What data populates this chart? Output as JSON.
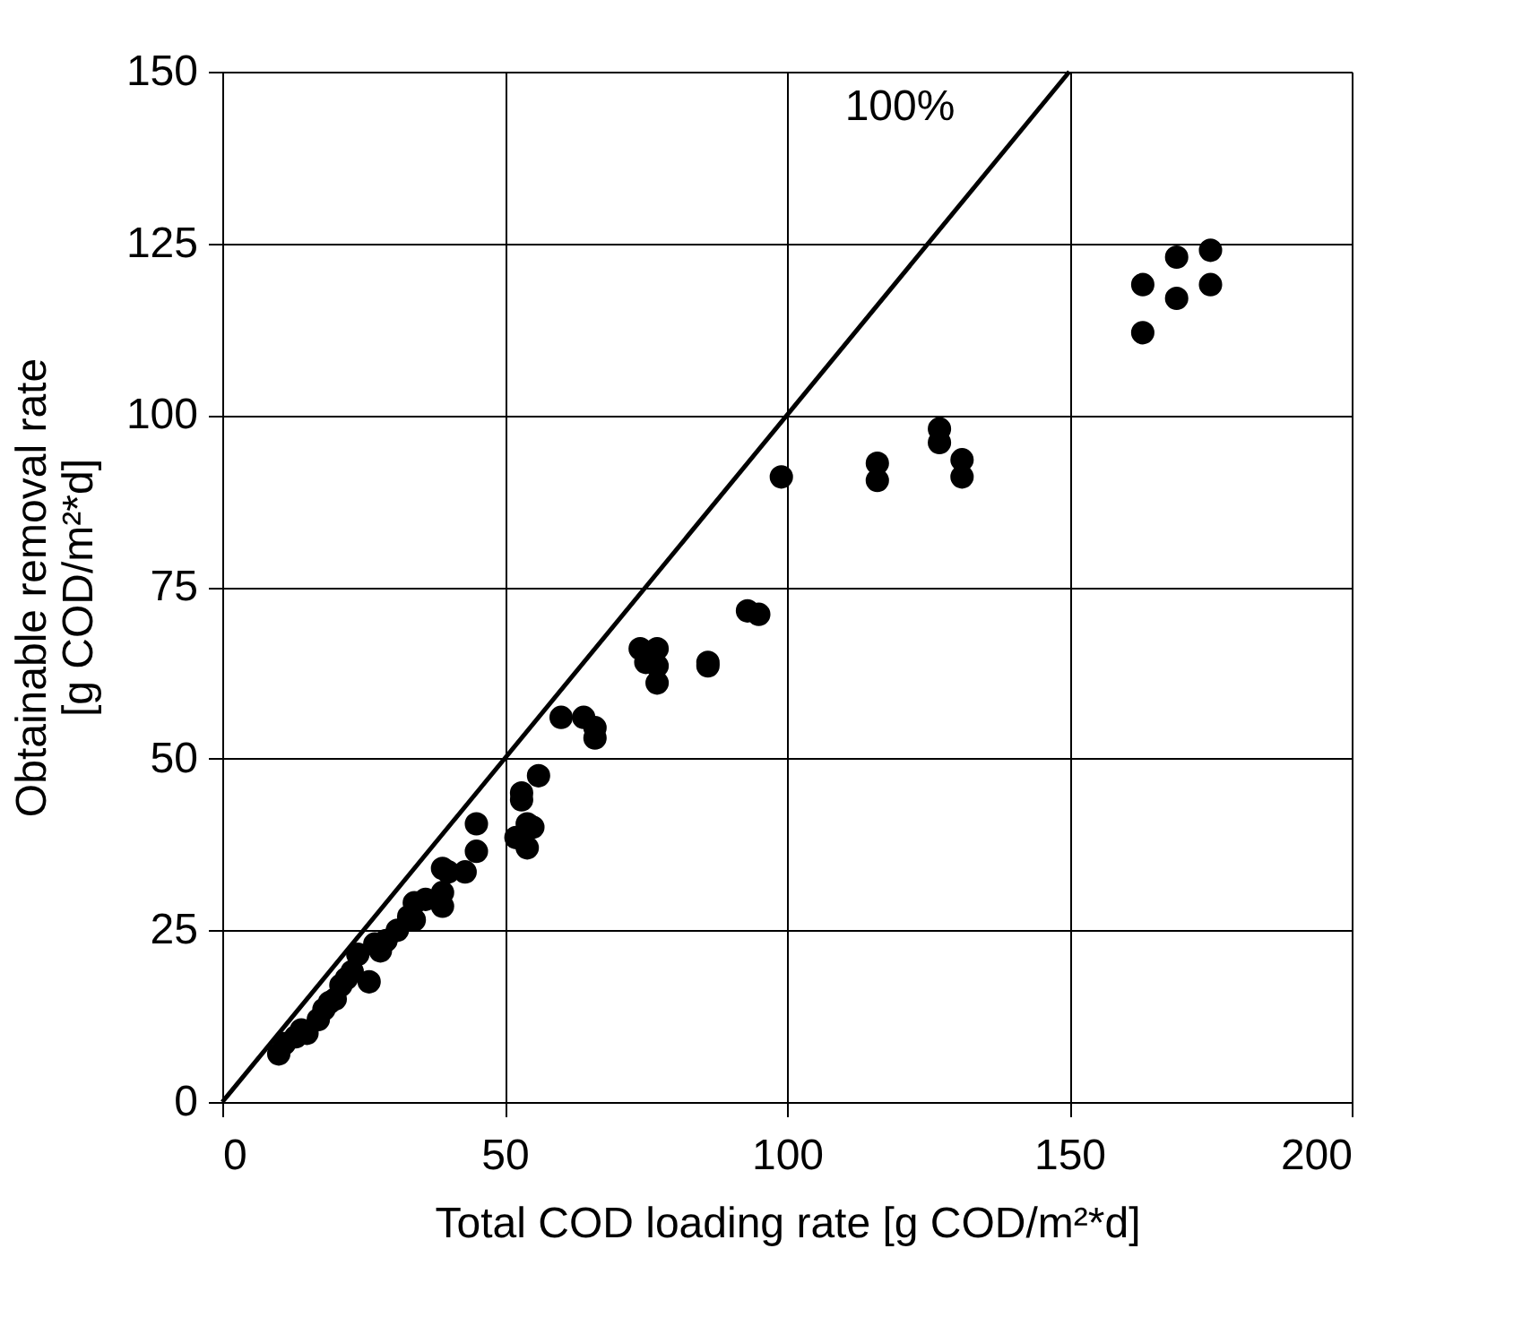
{
  "chart_data": {
    "type": "scatter",
    "xlabel": "Total COD loading rate [g COD/m²*d]",
    "ylabel": "Obtainable removal rate\n[g COD/m²*d]",
    "xlim": [
      0,
      200
    ],
    "xticks": [
      0,
      50,
      100,
      150,
      200
    ],
    "ylim": [
      0,
      150
    ],
    "yticks": [
      0,
      25,
      50,
      75,
      100,
      125,
      150
    ],
    "grid": true,
    "series": [
      {
        "color": "#000000",
        "marker": "circle",
        "x": [
          163,
          163,
          169,
          169,
          175,
          175,
          116,
          116,
          127,
          127,
          131,
          131,
          99,
          93,
          95,
          86,
          86,
          74,
          75,
          77,
          77,
          77,
          60,
          64,
          66,
          66,
          52,
          53,
          53,
          54,
          54,
          55,
          56,
          45,
          45,
          43,
          40,
          39,
          39,
          39,
          36,
          34,
          33,
          34,
          31,
          29,
          28,
          27,
          26,
          24,
          23,
          22,
          21,
          20,
          19,
          18,
          17,
          15,
          14,
          13,
          11,
          10
        ],
        "values": [
          112,
          119,
          117,
          123,
          124,
          119,
          93,
          90.5,
          98,
          96,
          93.5,
          91,
          91,
          71.5,
          71,
          64,
          63.5,
          66,
          64,
          66,
          63.5,
          61,
          56,
          56,
          54.5,
          53,
          38.5,
          44,
          45,
          37,
          40.5,
          40,
          47.5,
          40.5,
          36.5,
          33.5,
          33.5,
          34,
          30.5,
          28.5,
          29.5,
          29,
          27,
          26.5,
          25,
          23.5,
          22,
          23,
          17.5,
          21.5,
          19,
          18,
          17,
          15,
          14.5,
          13.5,
          12,
          10,
          10.5,
          9.5,
          8.5,
          7
        ]
      },
      {
        "type": "line",
        "color": "#000000",
        "x": [
          0,
          150
        ],
        "values": [
          0,
          150
        ]
      }
    ],
    "annotations": [
      "100%"
    ]
  }
}
